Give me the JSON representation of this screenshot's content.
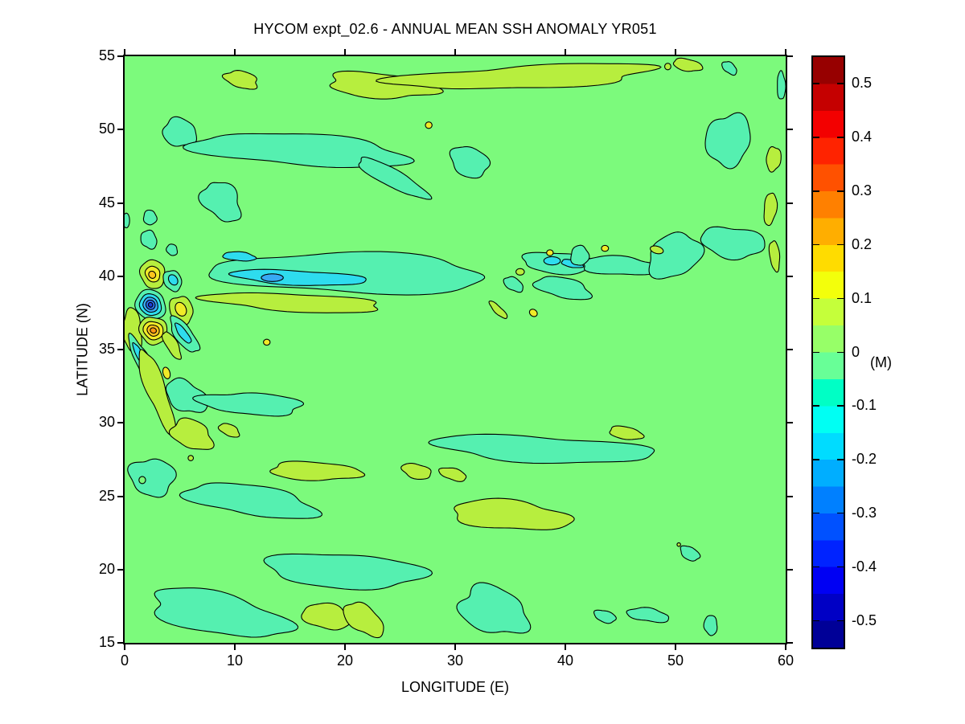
{
  "title": "HYCOM expt_02.6 - ANNUAL MEAN SSH ANOMALY YR051",
  "axes": {
    "xlabel": "LONGITUDE (E)",
    "ylabel": "LATITUDE (N)",
    "xlim": [
      0,
      60
    ],
    "ylim": [
      15,
      55
    ],
    "xticks": [
      0,
      10,
      20,
      30,
      40,
      50,
      60
    ],
    "yticks": [
      15,
      20,
      25,
      30,
      35,
      40,
      45,
      50,
      55
    ]
  },
  "colorbar": {
    "label": "(M)",
    "ticks": [
      "0.5",
      "0.4",
      "0.3",
      "0.2",
      "0.1",
      "0",
      "-0.1",
      "-0.2",
      "-0.3",
      "-0.4",
      "-0.5"
    ],
    "tick_values": [
      0.5,
      0.4,
      0.3,
      0.2,
      0.1,
      0,
      -0.1,
      -0.2,
      -0.3,
      -0.4,
      -0.5
    ],
    "range": [
      -0.55,
      0.55
    ],
    "band_colors_bottom_to_top": [
      "#000097",
      "#0000C5",
      "#0000F3",
      "#0023FF",
      "#0051FF",
      "#0080FF",
      "#00AEFF",
      "#00DCFF",
      "#00FFF3",
      "#00FFC5",
      "#68FF97",
      "#97FF68",
      "#C5FF3A",
      "#F3FF0B",
      "#FFDC00",
      "#FFAE00",
      "#FF8000",
      "#FF5100",
      "#FF2300",
      "#F30000",
      "#C50000",
      "#970000"
    ]
  },
  "chart_data": {
    "type": "filled_contour",
    "title": "HYCOM expt_02.6 - ANNUAL MEAN SSH ANOMALY YR051",
    "xlabel": "LONGITUDE (E)",
    "ylabel": "LATITUDE (N)",
    "value_units": "M",
    "lon_range": [
      0,
      60
    ],
    "lat_range": [
      15,
      55
    ],
    "value_range": [
      -0.55,
      0.55
    ],
    "contour_interval": 0.05,
    "background_band": {
      "value": "0 (-0.05..0.05)",
      "hex": "#7CFA7C"
    },
    "palette": {
      "bg": {
        "hex": "#7CFA7C",
        "value": 0
      },
      "m1": {
        "hex": "#55F0B0",
        "value": -0.07
      },
      "m2": {
        "hex": "#2EDCEE",
        "value": -0.12
      },
      "m3": {
        "hex": "#38A9F4",
        "value": -0.18
      },
      "m4": {
        "hex": "#2B6FF0",
        "value": -0.25
      },
      "m5": {
        "hex": "#1E3ED6",
        "value": -0.33
      },
      "p1": {
        "hex": "#B7EE3E",
        "value": 0.07
      },
      "p2": {
        "hex": "#F0EA28",
        "value": 0.12
      },
      "p3": {
        "hex": "#FFC41E",
        "value": 0.18
      },
      "p4": {
        "hex": "#FF9614",
        "value": 0.25
      }
    },
    "feature_format": [
      "lon_center_degE",
      "lat_center_degN",
      "radius_lon_deg",
      "radius_lat_deg",
      "rotation_deg",
      "band_color_key",
      "wobble"
    ],
    "features": [
      [
        10.6,
        53.4,
        1.6,
        0.55,
        -10,
        "p1",
        0.15
      ],
      [
        23.3,
        53.0,
        5.2,
        0.8,
        -3,
        "p1",
        0.18
      ],
      [
        36.5,
        53.6,
        11.2,
        0.8,
        2,
        "p1",
        0.22
      ],
      [
        51.1,
        54.4,
        1.35,
        0.4,
        -8,
        "p1",
        0.1
      ],
      [
        49.3,
        54.3,
        0.28,
        0.22,
        0,
        "p1",
        0
      ],
      [
        54.9,
        54.2,
        0.7,
        0.38,
        -25,
        "m1",
        0.1
      ],
      [
        59.6,
        53.0,
        0.38,
        0.95,
        3,
        "m1",
        0.1
      ],
      [
        5.0,
        49.8,
        1.55,
        0.95,
        -10,
        "m1",
        0.12
      ],
      [
        16.0,
        48.6,
        9.5,
        1.1,
        -3,
        "m1",
        0.16
      ],
      [
        24.3,
        46.7,
        3.4,
        0.65,
        -22,
        "m1",
        0.12
      ],
      [
        27.6,
        50.3,
        0.3,
        0.22,
        0,
        "p2",
        0
      ],
      [
        31.3,
        47.8,
        1.8,
        1.0,
        -15,
        "m1",
        0.12
      ],
      [
        54.8,
        49.3,
        2.0,
        1.8,
        15,
        "m1",
        0.14
      ],
      [
        8.8,
        45.1,
        1.9,
        1.2,
        -30,
        "m1",
        0.2
      ],
      [
        2.3,
        44.0,
        0.6,
        0.5,
        0,
        "m1",
        0.08
      ],
      [
        0.15,
        43.8,
        0.3,
        0.5,
        0,
        "m1",
        0
      ],
      [
        20.5,
        40.2,
        13.0,
        1.3,
        -1,
        "m1",
        0.16
      ],
      [
        15.8,
        39.9,
        6.0,
        0.5,
        -2,
        "m2",
        0.12
      ],
      [
        13.4,
        39.9,
        1.0,
        0.26,
        0,
        "m3",
        0
      ],
      [
        10.4,
        41.35,
        1.5,
        0.3,
        -4,
        "m2",
        0.1
      ],
      [
        35.3,
        39.45,
        0.9,
        0.45,
        -20,
        "m1",
        0.1
      ],
      [
        39.5,
        40.9,
        3.5,
        0.7,
        -2,
        "m1",
        0.14
      ],
      [
        38.8,
        41.05,
        0.75,
        0.28,
        0,
        "m2",
        0
      ],
      [
        40.6,
        40.85,
        1.0,
        0.24,
        -8,
        "m2",
        0.1
      ],
      [
        39.8,
        39.2,
        2.5,
        0.7,
        -8,
        "m1",
        0.14
      ],
      [
        45.0,
        40.7,
        3.8,
        0.6,
        -2,
        "m1",
        0.16
      ],
      [
        41.3,
        41.4,
        0.8,
        0.7,
        0,
        "m1",
        0.1
      ],
      [
        49.9,
        41.4,
        2.4,
        1.5,
        12,
        "m1",
        0.14
      ],
      [
        55.2,
        42.3,
        2.9,
        1.05,
        -6,
        "m1",
        0.14
      ],
      [
        35.9,
        40.3,
        0.38,
        0.22,
        0,
        "p1",
        0
      ],
      [
        38.6,
        41.6,
        0.3,
        0.2,
        0,
        "p2",
        0
      ],
      [
        43.6,
        41.9,
        0.32,
        0.2,
        0,
        "p2",
        0
      ],
      [
        48.3,
        41.8,
        0.6,
        0.25,
        -10,
        "p1",
        0
      ],
      [
        33.9,
        37.7,
        0.95,
        0.28,
        -35,
        "p1",
        0.1
      ],
      [
        37.1,
        37.5,
        0.36,
        0.24,
        -15,
        "p2",
        0
      ],
      [
        58.9,
        48.0,
        0.65,
        0.85,
        -8,
        "p1",
        0.1
      ],
      [
        58.6,
        44.6,
        0.55,
        1.15,
        -10,
        "p1",
        0.1
      ],
      [
        59.0,
        41.4,
        0.45,
        1.05,
        8,
        "p1",
        0.1
      ],
      [
        15.5,
        38.2,
        8.0,
        0.6,
        -2,
        "p1",
        0.15
      ],
      [
        0.7,
        36.3,
        0.85,
        1.5,
        10,
        "p1",
        0.12
      ],
      [
        2.2,
        42.5,
        0.75,
        0.6,
        -20,
        "m1",
        0.1
      ],
      [
        4.3,
        41.8,
        0.5,
        0.38,
        -10,
        "m1",
        0.08
      ],
      [
        2.55,
        40.15,
        1.15,
        0.95,
        -12,
        "p1",
        0.08
      ],
      [
        2.55,
        40.15,
        0.68,
        0.52,
        -12,
        "p2",
        0.05
      ],
      [
        2.5,
        40.1,
        0.32,
        0.24,
        -12,
        "p3",
        0
      ],
      [
        4.35,
        39.7,
        0.85,
        0.68,
        -28,
        "m1",
        0.08
      ],
      [
        4.4,
        39.75,
        0.45,
        0.32,
        -28,
        "m2",
        0
      ],
      [
        2.35,
        38.05,
        1.4,
        1.0,
        -8,
        "m1",
        0.06
      ],
      [
        2.35,
        38.05,
        1.0,
        0.72,
        -8,
        "m2",
        0.05
      ],
      [
        2.35,
        38.05,
        0.68,
        0.5,
        -8,
        "m3",
        0.04
      ],
      [
        2.35,
        38.05,
        0.42,
        0.32,
        -8,
        "m4",
        0
      ],
      [
        2.35,
        38.05,
        0.2,
        0.16,
        -8,
        "m5",
        0
      ],
      [
        5.15,
        37.7,
        1.1,
        0.9,
        -35,
        "p1",
        0.1
      ],
      [
        5.1,
        37.75,
        0.55,
        0.42,
        -35,
        "p2",
        0
      ],
      [
        2.6,
        36.3,
        1.25,
        0.95,
        -8,
        "p1",
        0.08
      ],
      [
        2.6,
        36.3,
        0.9,
        0.62,
        -8,
        "p2",
        0.05
      ],
      [
        2.6,
        36.3,
        0.55,
        0.38,
        -8,
        "p3",
        0.04
      ],
      [
        2.6,
        36.3,
        0.28,
        0.18,
        -8,
        "p4",
        0
      ],
      [
        5.4,
        36.0,
        1.7,
        0.65,
        -42,
        "m1",
        0.12
      ],
      [
        5.3,
        36.1,
        0.95,
        0.3,
        -42,
        "m2",
        0.08
      ],
      [
        1.6,
        34.3,
        1.9,
        0.6,
        -55,
        "m1",
        0.14
      ],
      [
        1.3,
        34.7,
        0.9,
        0.26,
        -55,
        "m2",
        0.08
      ],
      [
        4.3,
        35.3,
        1.2,
        0.45,
        -50,
        "p1",
        0.12
      ],
      [
        2.9,
        32.2,
        3.1,
        0.85,
        -63,
        "p1",
        0.16
      ],
      [
        3.8,
        33.4,
        0.42,
        0.3,
        -60,
        "p2",
        0
      ],
      [
        12.9,
        35.5,
        0.3,
        0.2,
        0,
        "p2",
        0
      ],
      [
        5.6,
        31.8,
        1.9,
        1.05,
        -18,
        "m1",
        0.14
      ],
      [
        11.5,
        31.3,
        4.6,
        0.75,
        -3,
        "m1",
        0.16
      ],
      [
        6.1,
        29.2,
        1.95,
        0.95,
        -12,
        "p1",
        0.16
      ],
      [
        9.5,
        29.5,
        0.95,
        0.4,
        -15,
        "p1",
        0.1
      ],
      [
        6.0,
        27.6,
        0.24,
        0.18,
        0,
        "p1",
        0
      ],
      [
        2.5,
        26.3,
        2.0,
        1.3,
        -8,
        "m1",
        0.16
      ],
      [
        1.6,
        26.1,
        0.3,
        0.24,
        0,
        "bg",
        0
      ],
      [
        11.5,
        24.7,
        5.8,
        1.05,
        -6,
        "m1",
        0.16
      ],
      [
        17.3,
        26.7,
        4.3,
        0.6,
        -2,
        "p1",
        0.14
      ],
      [
        26.5,
        26.7,
        1.35,
        0.5,
        -8,
        "p1",
        0.1
      ],
      [
        29.8,
        26.5,
        1.25,
        0.4,
        -10,
        "p1",
        0.1
      ],
      [
        38.0,
        28.2,
        9.7,
        0.9,
        -2,
        "m1",
        0.16
      ],
      [
        45.5,
        29.3,
        1.55,
        0.42,
        -6,
        "p1",
        0.1
      ],
      [
        35.0,
        23.7,
        5.6,
        0.95,
        -3,
        "p1",
        0.16
      ],
      [
        51.3,
        21.1,
        0.9,
        0.45,
        -20,
        "m1",
        0.1
      ],
      [
        50.3,
        21.7,
        0.16,
        0.12,
        0,
        "p1",
        0
      ],
      [
        20.0,
        19.9,
        7.0,
        1.2,
        -2,
        "m1",
        0.14
      ],
      [
        8.5,
        17.0,
        6.6,
        1.35,
        -9,
        "m1",
        0.18
      ],
      [
        18.3,
        16.8,
        2.2,
        0.85,
        -8,
        "p1",
        0.12
      ],
      [
        21.7,
        16.6,
        1.9,
        0.95,
        -25,
        "p1",
        0.12
      ],
      [
        33.5,
        17.2,
        3.3,
        1.5,
        -12,
        "m1",
        0.18
      ],
      [
        43.6,
        16.8,
        1.0,
        0.4,
        -10,
        "m1",
        0.1
      ],
      [
        47.5,
        16.9,
        1.9,
        0.45,
        -5,
        "m1",
        0.14
      ],
      [
        53.2,
        16.2,
        0.6,
        0.68,
        5,
        "m1",
        0.08
      ]
    ]
  }
}
